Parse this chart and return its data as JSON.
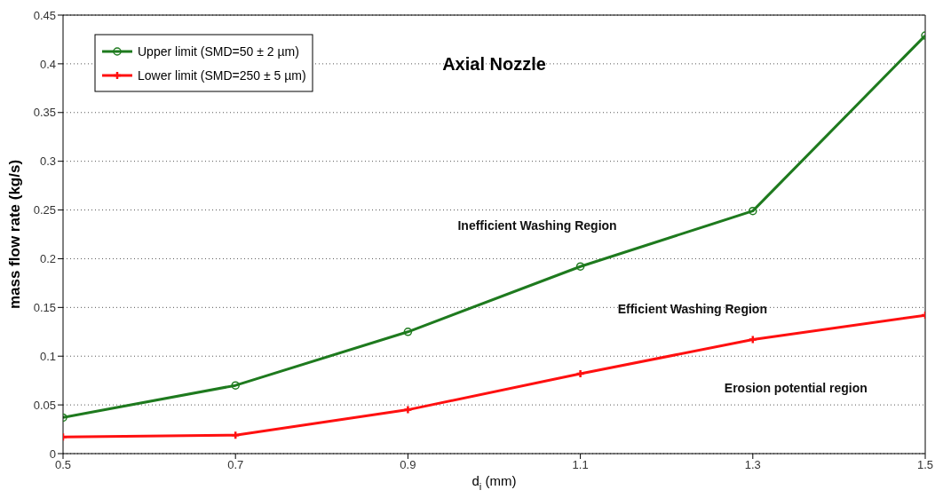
{
  "chart_data": {
    "type": "line",
    "title": "Axial Nozzle",
    "xlabel": "d$_{i}$ (mm)",
    "ylabel": "mass flow rate (kg/s)",
    "x": [
      0.5,
      0.7,
      0.9,
      1.1,
      1.3,
      1.5
    ],
    "series": [
      {
        "name": "Upper limit (SMD=50 ± 2 µm)",
        "color": "#1e7a1e",
        "marker": "circle",
        "values": [
          0.037,
          0.07,
          0.125,
          0.192,
          0.249,
          0.429
        ]
      },
      {
        "name": "Lower limit (SMD=250 ± 5 µm)",
        "color": "#ff1010",
        "marker": "cross",
        "values": [
          0.017,
          0.019,
          0.045,
          0.082,
          0.117,
          0.142
        ]
      }
    ],
    "xlim": [
      0.5,
      1.5
    ],
    "xticks": [
      0.5,
      0.7,
      0.9,
      1.1,
      1.3,
      1.5
    ],
    "ylim": [
      0,
      0.45
    ],
    "yticks": [
      0,
      0.05,
      0.1,
      0.15,
      0.2,
      0.25,
      0.3,
      0.35,
      0.4,
      0.45
    ],
    "grid": "y",
    "legend": "top left",
    "line_style": "solid",
    "annotations": [
      "Inefficient Washing Region",
      "Efficient Washing Region",
      "Erosion potential region"
    ]
  }
}
